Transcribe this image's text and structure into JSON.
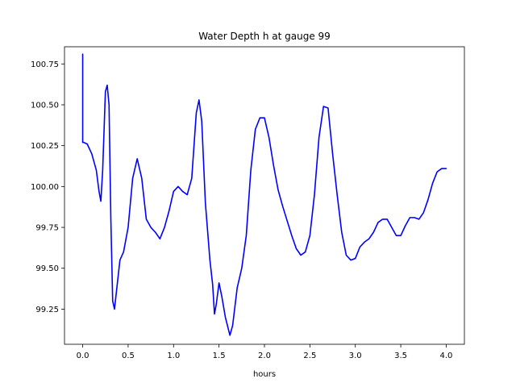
{
  "chart_data": {
    "type": "line",
    "title": "Water Depth h at gauge 99",
    "xlabel": "hours",
    "ylabel": "",
    "xlim": [
      -0.2,
      4.2
    ],
    "ylim": [
      99.035,
      100.855
    ],
    "xticks": [
      0.0,
      0.5,
      1.0,
      1.5,
      2.0,
      2.5,
      3.0,
      3.5,
      4.0
    ],
    "xtick_labels": [
      "0.0",
      "0.5",
      "1.0",
      "1.5",
      "2.0",
      "2.5",
      "3.0",
      "3.5",
      "4.0"
    ],
    "yticks": [
      99.25,
      99.5,
      99.75,
      100.0,
      100.25,
      100.5,
      100.75
    ],
    "ytick_labels": [
      "99.25",
      "99.50",
      "99.75",
      "100.00",
      "100.25",
      "100.50",
      "100.75"
    ],
    "grid": false,
    "series": [
      {
        "color": "#0000ff",
        "x": [
          0.0,
          0.0,
          0.01,
          0.05,
          0.1,
          0.15,
          0.18,
          0.2,
          0.22,
          0.25,
          0.27,
          0.29,
          0.31,
          0.33,
          0.35,
          0.38,
          0.41,
          0.45,
          0.5,
          0.55,
          0.6,
          0.65,
          0.7,
          0.75,
          0.8,
          0.85,
          0.9,
          0.95,
          1.0,
          1.05,
          1.1,
          1.15,
          1.2,
          1.25,
          1.28,
          1.31,
          1.35,
          1.4,
          1.43,
          1.45,
          1.47,
          1.5,
          1.53,
          1.57,
          1.62,
          1.65,
          1.7,
          1.75,
          1.8,
          1.85,
          1.9,
          1.95,
          2.0,
          2.05,
          2.1,
          2.15,
          2.2,
          2.25,
          2.3,
          2.35,
          2.4,
          2.45,
          2.5,
          2.55,
          2.6,
          2.65,
          2.7,
          2.75,
          2.8,
          2.85,
          2.9,
          2.95,
          3.0,
          3.05,
          3.1,
          3.15,
          3.2,
          3.25,
          3.3,
          3.35,
          3.4,
          3.45,
          3.5,
          3.55,
          3.6,
          3.65,
          3.7,
          3.75,
          3.8,
          3.85,
          3.9,
          3.95,
          4.0
        ],
        "y": [
          100.81,
          100.27,
          100.27,
          100.26,
          100.2,
          100.1,
          99.97,
          99.91,
          100.1,
          100.58,
          100.62,
          100.5,
          99.8,
          99.3,
          99.25,
          99.4,
          99.55,
          99.6,
          99.75,
          100.05,
          100.17,
          100.05,
          99.8,
          99.75,
          99.72,
          99.68,
          99.75,
          99.85,
          99.97,
          100.0,
          99.97,
          99.95,
          100.05,
          100.45,
          100.53,
          100.4,
          99.9,
          99.55,
          99.4,
          99.22,
          99.28,
          99.41,
          99.33,
          99.2,
          99.09,
          99.15,
          99.38,
          99.5,
          99.7,
          100.1,
          100.35,
          100.42,
          100.42,
          100.3,
          100.13,
          99.98,
          99.88,
          99.79,
          99.7,
          99.62,
          99.58,
          99.6,
          99.7,
          99.95,
          100.3,
          100.49,
          100.48,
          100.2,
          99.95,
          99.72,
          99.58,
          99.55,
          99.56,
          99.63,
          99.66,
          99.68,
          99.72,
          99.78,
          99.8,
          99.8,
          99.75,
          99.7,
          99.7,
          99.76,
          99.81,
          99.81,
          99.8,
          99.84,
          99.92,
          100.02,
          100.09,
          100.11,
          100.11
        ]
      }
    ]
  }
}
